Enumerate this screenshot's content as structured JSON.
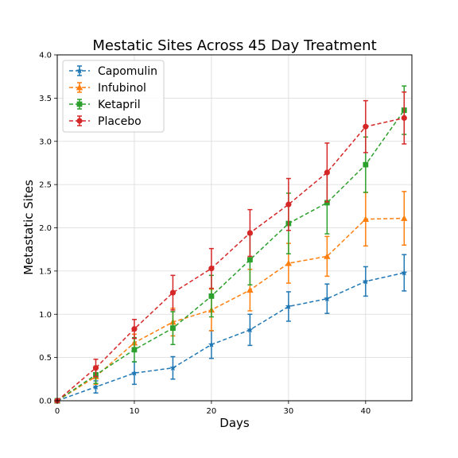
{
  "chart_data": {
    "type": "line",
    "title": "Mestatic Sites Across 45 Day Treatment",
    "xlabel": "Days",
    "ylabel": "Metastatic Sites",
    "xlim": [
      0,
      46
    ],
    "ylim": [
      0,
      4.0
    ],
    "xticks": [
      0,
      10,
      20,
      30,
      40
    ],
    "xtick_labels": [
      "0",
      "10",
      "20",
      "30",
      "40"
    ],
    "yticks": [
      0,
      0.5,
      1.0,
      1.5,
      2.0,
      2.5,
      3.0,
      3.5,
      4.0
    ],
    "ytick_labels": [
      "0.0",
      "0.5",
      "1.0",
      "1.5",
      "2.0",
      "2.5",
      "3.0",
      "3.5",
      "4.0"
    ],
    "grid": true,
    "legend_position": "top-left",
    "x": [
      0,
      5,
      10,
      15,
      20,
      25,
      30,
      35,
      40,
      45
    ],
    "series": [
      {
        "name": "Capomulin",
        "color": "#1f77b4",
        "marker": "star",
        "values": [
          0.0,
          0.16,
          0.32,
          0.38,
          0.65,
          0.82,
          1.09,
          1.18,
          1.38,
          1.48
        ],
        "errors": [
          0.0,
          0.07,
          0.13,
          0.13,
          0.16,
          0.18,
          0.17,
          0.17,
          0.17,
          0.21
        ]
      },
      {
        "name": "Infubinol",
        "color": "#ff7f0e",
        "marker": "triangle",
        "values": [
          0.0,
          0.28,
          0.67,
          0.91,
          1.05,
          1.28,
          1.59,
          1.67,
          2.1,
          2.11
        ],
        "errors": [
          0.0,
          0.09,
          0.1,
          0.16,
          0.24,
          0.24,
          0.23,
          0.23,
          0.31,
          0.31
        ]
      },
      {
        "name": "Ketapril",
        "color": "#2ca02c",
        "marker": "square",
        "values": [
          0.0,
          0.3,
          0.59,
          0.84,
          1.21,
          1.63,
          2.05,
          2.29,
          2.73,
          3.36
        ],
        "errors": [
          0.0,
          0.1,
          0.14,
          0.19,
          0.24,
          0.29,
          0.35,
          0.36,
          0.32,
          0.28
        ]
      },
      {
        "name": "Placebo",
        "color": "#d62728",
        "marker": "circle",
        "values": [
          0.0,
          0.38,
          0.83,
          1.25,
          1.53,
          1.94,
          2.27,
          2.64,
          3.17,
          3.27
        ],
        "errors": [
          0.0,
          0.1,
          0.11,
          0.2,
          0.23,
          0.27,
          0.3,
          0.34,
          0.3,
          0.3
        ]
      }
    ]
  }
}
